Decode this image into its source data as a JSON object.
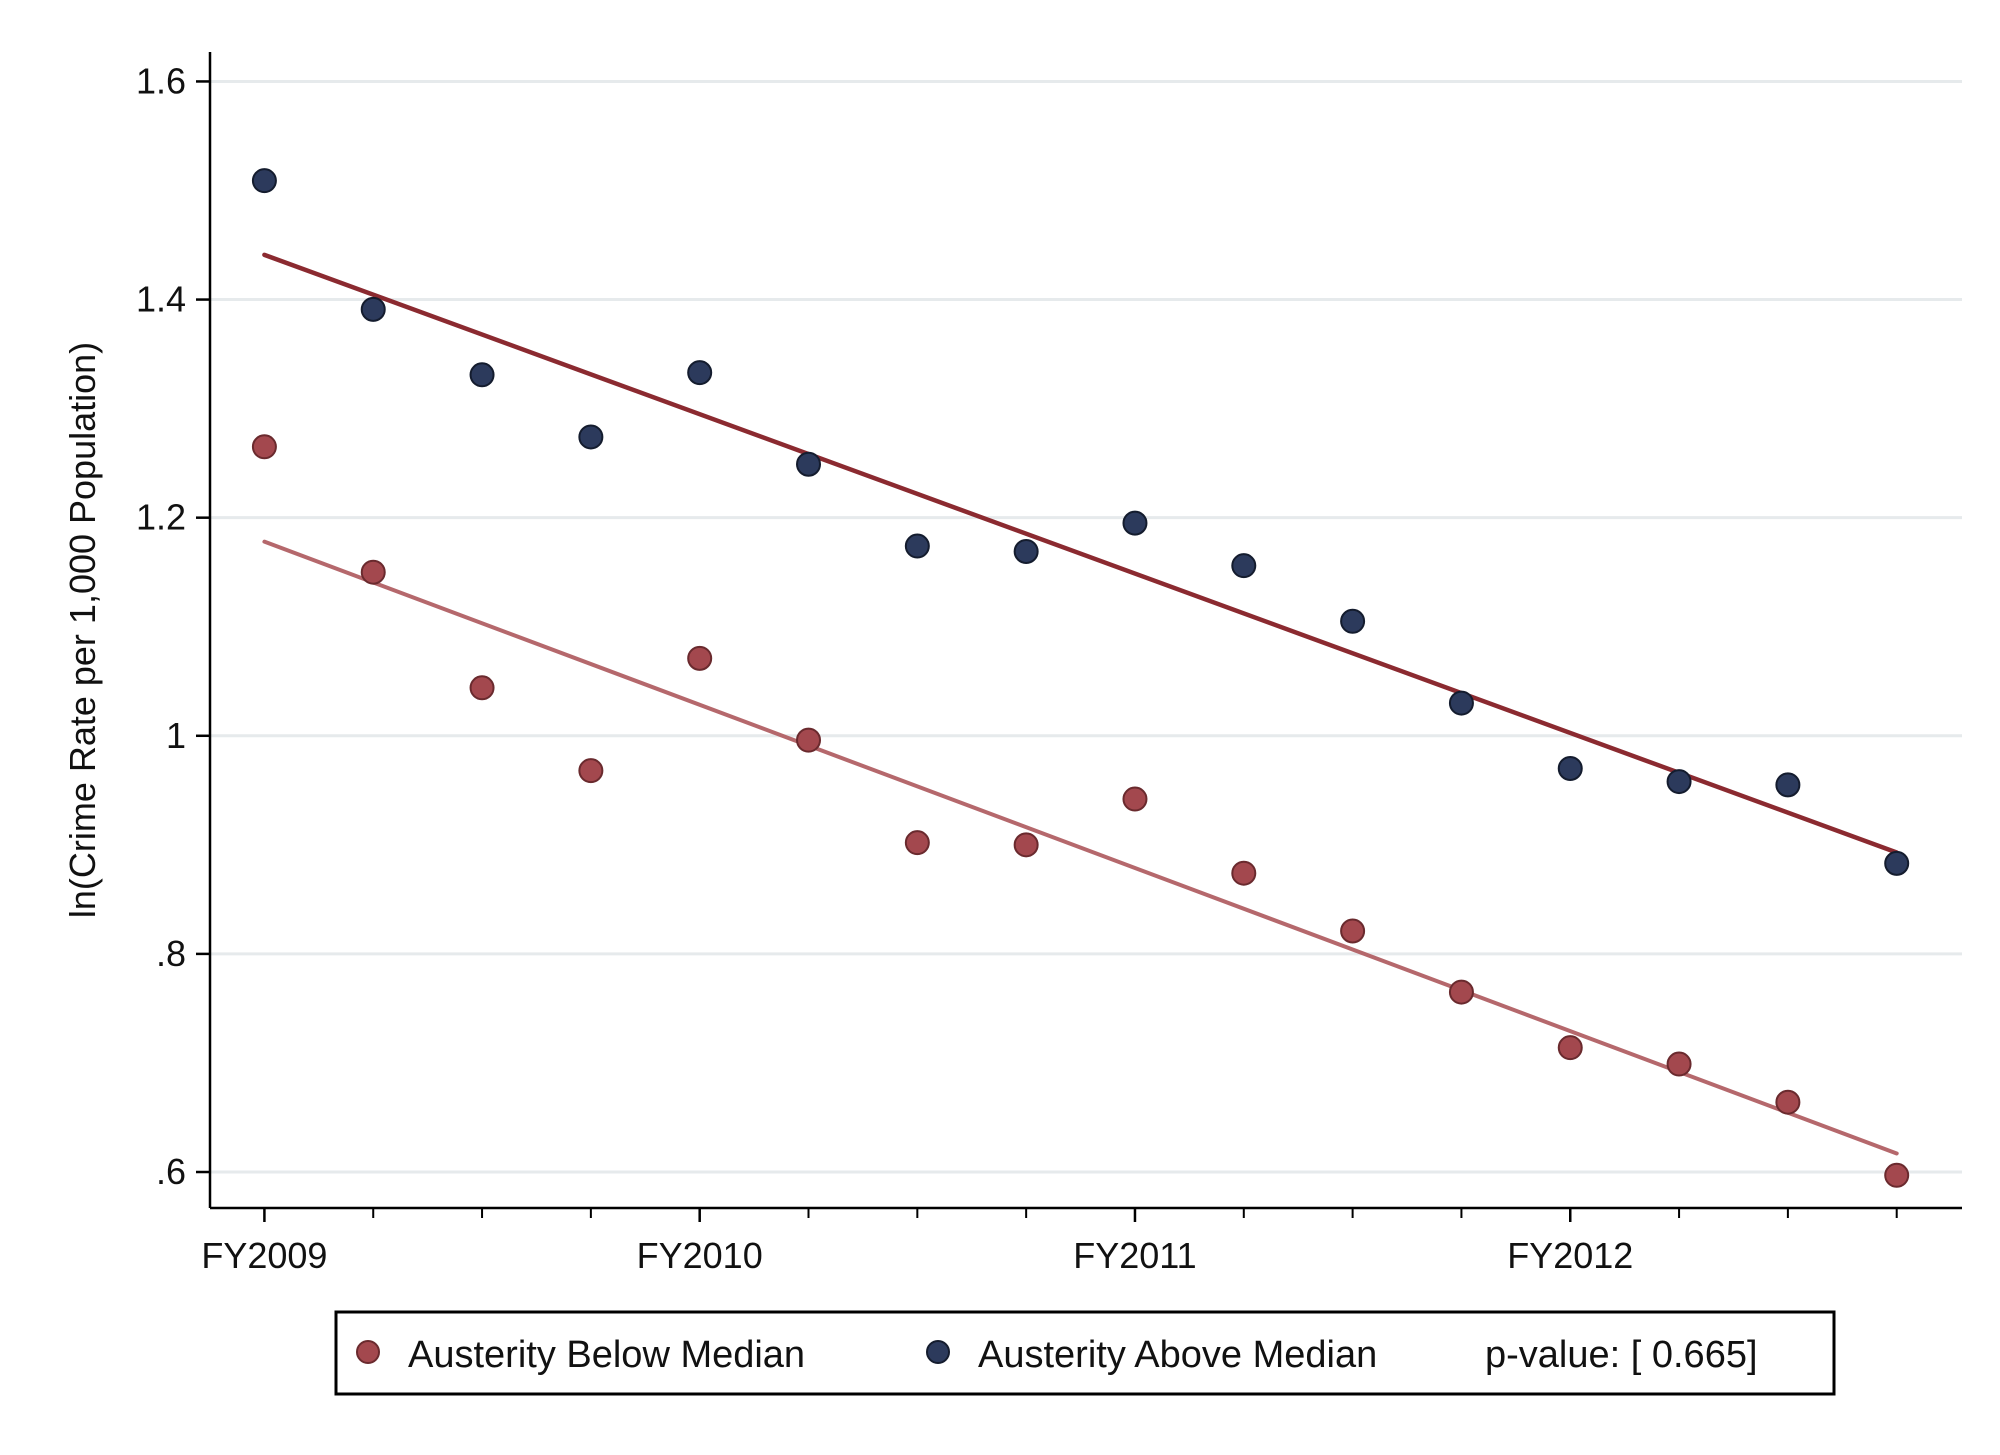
{
  "chart_data": {
    "type": "scatter",
    "title": "",
    "xlabel": "",
    "ylabel": "ln(Crime Rate per 1,000 Population)",
    "ylim": [
      0.567,
      1.627
    ],
    "xlim": [
      -0.125,
      3.9
    ],
    "yticks": [
      {
        "value": 0.6,
        "label": ".6"
      },
      {
        "value": 0.8,
        "label": ".8"
      },
      {
        "value": 1.0,
        "label": "1"
      },
      {
        "value": 1.2,
        "label": "1.2"
      },
      {
        "value": 1.4,
        "label": "1.4"
      },
      {
        "value": 1.6,
        "label": "1.6"
      }
    ],
    "xticks_major": [
      {
        "value": 0,
        "label": "FY2009"
      },
      {
        "value": 1,
        "label": "FY2010"
      },
      {
        "value": 2,
        "label": "FY2011"
      },
      {
        "value": 3,
        "label": "FY2012"
      }
    ],
    "xticks_minor": [
      0.25,
      0.5,
      0.75,
      1.25,
      1.5,
      1.75,
      2.25,
      2.5,
      2.75,
      3.25,
      3.5,
      3.75
    ],
    "grid": true,
    "series": [
      {
        "name": "Austerity Below Median",
        "color": "#a3484e",
        "x": [
          0,
          0.25,
          0.5,
          0.75,
          1,
          1.25,
          1.5,
          1.75,
          2,
          2.25,
          2.5,
          2.75,
          3,
          3.25,
          3.5,
          3.75
        ],
        "y": [
          1.265,
          1.15,
          1.044,
          0.968,
          1.071,
          0.996,
          0.902,
          0.9,
          0.942,
          0.874,
          0.821,
          0.765,
          0.714,
          0.699,
          0.664,
          0.597
        ],
        "fit": {
          "x": [
            0,
            3.75
          ],
          "y": [
            1.178,
            0.617
          ]
        },
        "fit_color": "#b5686c"
      },
      {
        "name": "Austerity Above Median",
        "color": "#2c3a5c",
        "x": [
          0,
          0.25,
          0.5,
          0.75,
          1,
          1.25,
          1.5,
          1.75,
          2,
          2.25,
          2.5,
          2.75,
          3,
          3.25,
          3.5,
          3.75
        ],
        "y": [
          1.509,
          1.391,
          1.331,
          1.274,
          1.333,
          1.249,
          1.174,
          1.169,
          1.195,
          1.156,
          1.105,
          1.03,
          0.97,
          0.958,
          0.955,
          0.883
        ],
        "fit": {
          "x": [
            0,
            3.75
          ],
          "y": [
            1.441,
            0.893
          ]
        },
        "fit_color": "#8b2a30"
      }
    ],
    "legend": {
      "position": "bottom",
      "entries": [
        "Austerity Below Median",
        "Austerity Above Median"
      ],
      "note": "p-value: [ 0.665]"
    }
  }
}
